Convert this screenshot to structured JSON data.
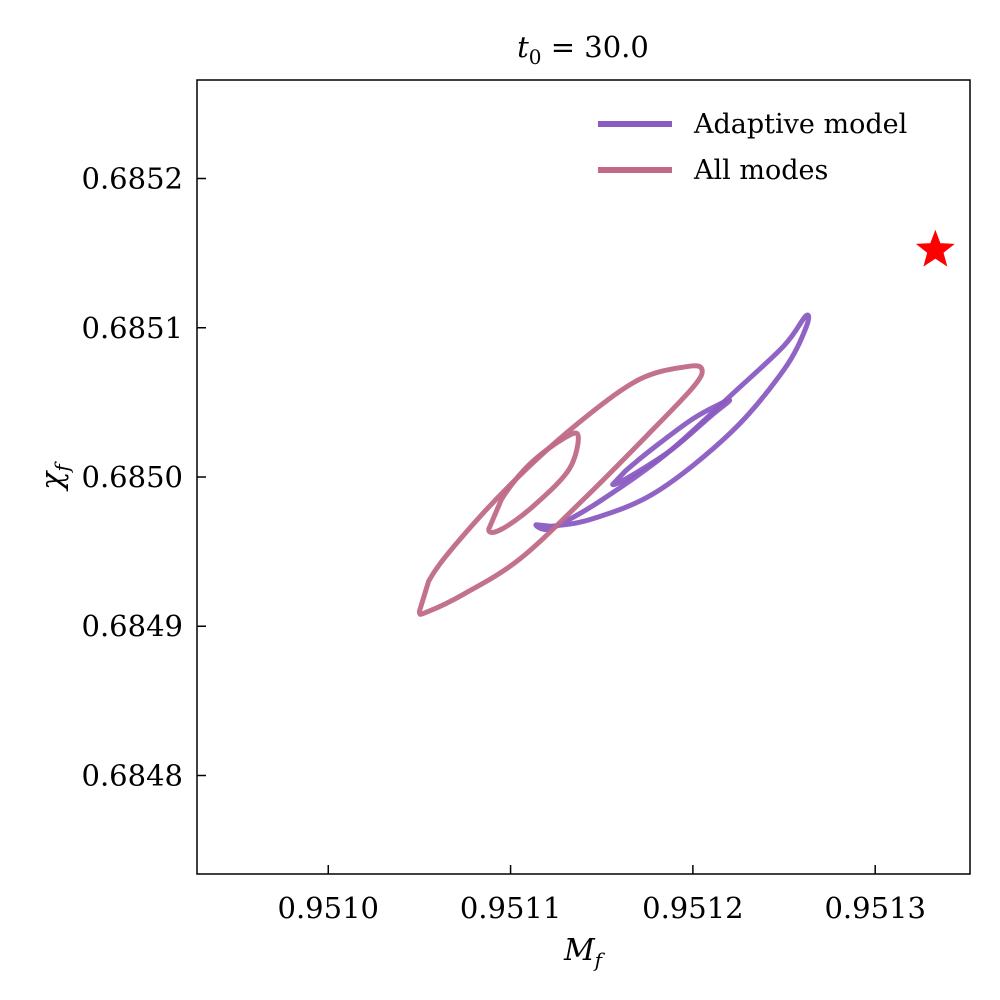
{
  "chart_data": {
    "type": "contour",
    "title": "t_0 = 30.0",
    "title_main": "t",
    "title_sub": "0",
    "title_rest": " = 30.0",
    "xlabel": "M_f",
    "xlabel_main": "M",
    "xlabel_sub": "f",
    "ylabel": "χ_f",
    "ylabel_main": "χ",
    "ylabel_sub": "f",
    "xlim": [
      0.950928,
      0.951352
    ],
    "ylim": [
      0.684734,
      0.685266
    ],
    "xticks": [
      0.951,
      0.9511,
      0.9512,
      0.9513
    ],
    "xtick_labels": [
      "0.9510",
      "0.9511",
      "0.9512",
      "0.9513"
    ],
    "yticks": [
      0.6848,
      0.6849,
      0.685,
      0.6851,
      0.6852
    ],
    "ytick_labels": [
      "0.6848",
      "0.6849",
      "0.6850",
      "0.6851",
      "0.6852"
    ],
    "grid": false,
    "legend_position": "top-right",
    "series": [
      {
        "name": "Adaptive model",
        "color": "#8a5cc2",
        "contours": [
          {
            "level": "outer",
            "points": [
              [
                0.951114,
                0.684968
              ],
              [
                0.951118,
                0.684965
              ],
              [
                0.951125,
                0.684967
              ],
              [
                0.951148,
                0.684983
              ],
              [
                0.951185,
                0.685015
              ],
              [
                0.951222,
                0.685056
              ],
              [
                0.95125,
                0.685088
              ],
              [
                0.951262,
                0.685108
              ],
              [
                0.951262,
                0.6851
              ],
              [
                0.95125,
                0.685072
              ],
              [
                0.951221,
                0.68503
              ],
              [
                0.95118,
                0.68499
              ],
              [
                0.951145,
                0.684972
              ],
              [
                0.951122,
                0.684967
              ],
              [
                0.951114,
                0.684968
              ]
            ]
          },
          {
            "level": "inner",
            "points": [
              [
                0.951156,
                0.684995
              ],
              [
                0.951165,
                0.685
              ],
              [
                0.951188,
                0.685018
              ],
              [
                0.95121,
                0.685041
              ],
              [
                0.95122,
                0.685051
              ],
              [
                0.951215,
                0.685049
              ],
              [
                0.9512,
                0.685039
              ],
              [
                0.95118,
                0.685021
              ],
              [
                0.951163,
                0.685004
              ],
              [
                0.951156,
                0.684995
              ]
            ]
          }
        ]
      },
      {
        "name": "All modes",
        "color": "#c06a88",
        "contours": [
          {
            "level": "outer",
            "points": [
              [
                0.95105,
                0.68491
              ],
              [
                0.951055,
                0.68491
              ],
              [
                0.951075,
                0.684922
              ],
              [
                0.951105,
                0.684945
              ],
              [
                0.95114,
                0.684985
              ],
              [
                0.951175,
                0.685028
              ],
              [
                0.9512,
                0.68506
              ],
              [
                0.951205,
                0.685072
              ],
              [
                0.951197,
                0.685074
              ],
              [
                0.95117,
                0.685065
              ],
              [
                0.951135,
                0.685034
              ],
              [
                0.9511,
                0.684995
              ],
              [
                0.95107,
                0.684955
              ],
              [
                0.951055,
                0.68493
              ],
              [
                0.95105,
                0.68491
              ]
            ]
          },
          {
            "level": "inner",
            "points": [
              [
                0.951088,
                0.684965
              ],
              [
                0.951095,
                0.684965
              ],
              [
                0.951112,
                0.68498
              ],
              [
                0.951132,
                0.685005
              ],
              [
                0.951137,
                0.685028
              ],
              [
                0.951128,
                0.685025
              ],
              [
                0.95111,
                0.685008
              ],
              [
                0.951095,
                0.684985
              ],
              [
                0.951088,
                0.684965
              ]
            ]
          }
        ]
      }
    ],
    "marker": {
      "symbol": "star",
      "color": "#ff0000",
      "x": 0.951333,
      "y": 0.685152
    }
  }
}
